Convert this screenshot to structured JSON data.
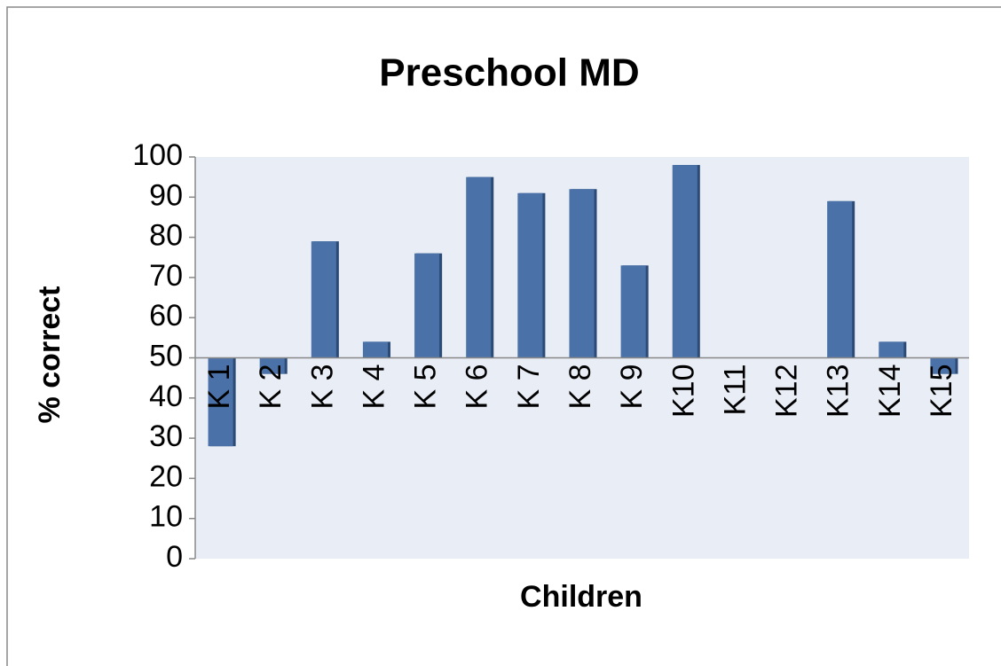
{
  "chart_data": {
    "type": "bar",
    "title": "Preschool MD",
    "x_label": "Children",
    "y_label": "% correct",
    "categories": [
      "K 1",
      "K 2",
      "K 3",
      "K 4",
      "K 5",
      "K 6",
      "K 7",
      "K 8",
      "K 9",
      "K10",
      "K11",
      "K12",
      "K13",
      "K14",
      "K15"
    ],
    "values": [
      28,
      46,
      79,
      54,
      76,
      95,
      91,
      92,
      73,
      98,
      50,
      50,
      89,
      54,
      46
    ],
    "color": "#4a72a8",
    "x_axis_crosses": 50,
    "ylim": [
      0,
      100
    ],
    "yticks": [
      0,
      10,
      20,
      30,
      40,
      50,
      60,
      70,
      80,
      90,
      100
    ],
    "grid": false
  }
}
